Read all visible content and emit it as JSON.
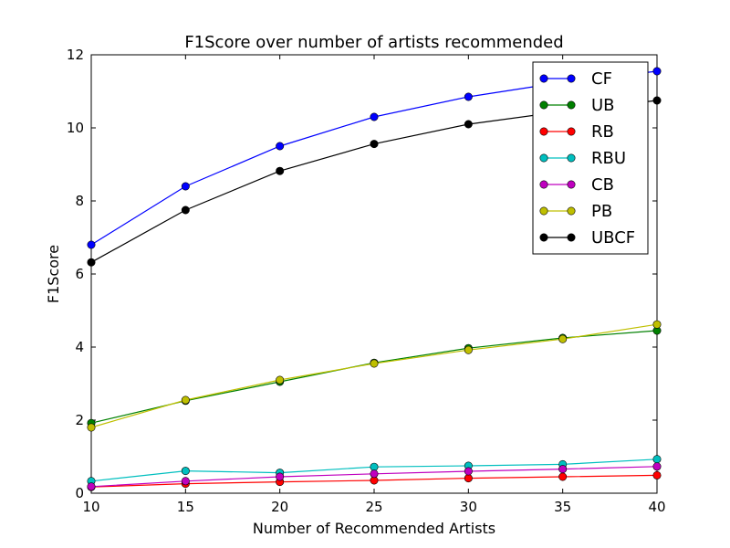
{
  "chart_data": {
    "type": "line",
    "title": "F1Score over number of artists recommended",
    "xlabel": "Number of Recommended Artists",
    "ylabel": "F1Score",
    "x": [
      10,
      15,
      20,
      25,
      30,
      35,
      40
    ],
    "xlim": [
      10,
      40
    ],
    "ylim": [
      0,
      12
    ],
    "xticks": [
      10,
      15,
      20,
      25,
      30,
      35,
      40
    ],
    "yticks": [
      0,
      2,
      4,
      6,
      8,
      10,
      12
    ],
    "grid": false,
    "legend_position": "top-right",
    "series": [
      {
        "name": "CF",
        "color": "#0000ff",
        "values": [
          6.8,
          8.4,
          9.5,
          10.3,
          10.85,
          11.25,
          11.55
        ]
      },
      {
        "name": "UB",
        "color": "#008000",
        "values": [
          1.92,
          2.53,
          3.05,
          3.57,
          3.97,
          4.25,
          4.45
        ]
      },
      {
        "name": "RB",
        "color": "#ff0000",
        "values": [
          0.17,
          0.26,
          0.31,
          0.35,
          0.41,
          0.45,
          0.49
        ]
      },
      {
        "name": "RBU",
        "color": "#00bfbf",
        "values": [
          0.33,
          0.61,
          0.56,
          0.72,
          0.75,
          0.79,
          0.93
        ]
      },
      {
        "name": "CB",
        "color": "#bf00bf",
        "values": [
          0.18,
          0.33,
          0.45,
          0.53,
          0.6,
          0.66,
          0.73
        ]
      },
      {
        "name": "PB",
        "color": "#bfbf00",
        "values": [
          1.8,
          2.55,
          3.1,
          3.55,
          3.92,
          4.22,
          4.62
        ]
      },
      {
        "name": "UBCF",
        "color": "#000000",
        "values": [
          6.32,
          7.75,
          8.82,
          9.56,
          10.1,
          10.45,
          10.75
        ]
      }
    ]
  }
}
